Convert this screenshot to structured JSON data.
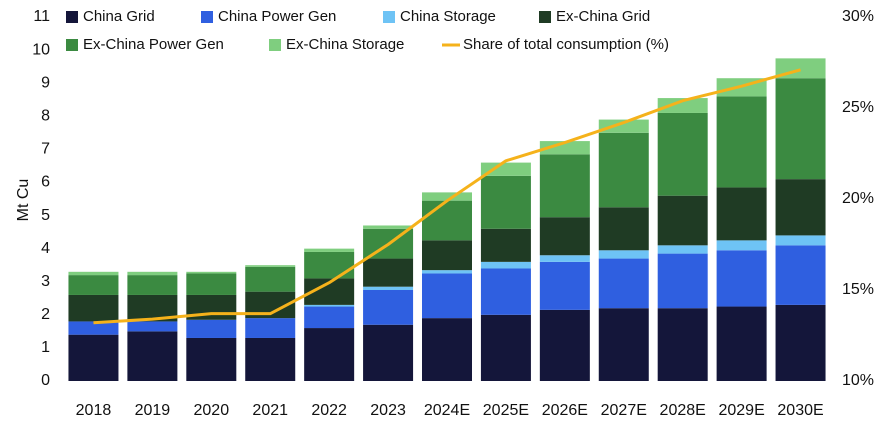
{
  "chart_data": {
    "type": "bar",
    "stacked": true,
    "y_label": "Mt Cu",
    "categories": [
      "2018",
      "2019",
      "2020",
      "2021",
      "2022",
      "2023",
      "2024E",
      "2025E",
      "2026E",
      "2027E",
      "2028E",
      "2029E",
      "2030E"
    ],
    "series": [
      {
        "name": "China Grid",
        "color": "#14163a",
        "values": [
          1.4,
          1.5,
          1.3,
          1.3,
          1.6,
          1.7,
          1.9,
          2.0,
          2.15,
          2.2,
          2.2,
          2.25,
          2.3
        ]
      },
      {
        "name": "China Power Gen",
        "color": "#2f5fe0",
        "values": [
          0.4,
          0.3,
          0.55,
          0.6,
          0.65,
          1.05,
          1.35,
          1.4,
          1.45,
          1.5,
          1.65,
          1.7,
          1.8
        ]
      },
      {
        "name": "China Storage",
        "color": "#6ec3f5",
        "values": [
          0,
          0,
          0,
          0,
          0.05,
          0.1,
          0.1,
          0.2,
          0.2,
          0.25,
          0.25,
          0.3,
          0.3
        ]
      },
      {
        "name": "Ex-China Grid",
        "color": "#1f3b24",
        "values": [
          0.8,
          0.8,
          0.75,
          0.8,
          0.8,
          0.85,
          0.9,
          1.0,
          1.15,
          1.3,
          1.5,
          1.6,
          1.7
        ]
      },
      {
        "name": "Ex-China Power Gen",
        "color": "#3b8a41",
        "values": [
          0.6,
          0.6,
          0.65,
          0.75,
          0.8,
          0.9,
          1.2,
          1.6,
          1.9,
          2.25,
          2.5,
          2.75,
          3.05
        ]
      },
      {
        "name": "Ex-China Storage",
        "color": "#7fce7f",
        "values": [
          0.1,
          0.1,
          0.05,
          0.05,
          0.1,
          0.1,
          0.25,
          0.4,
          0.4,
          0.4,
          0.45,
          0.55,
          0.6
        ]
      },
      {
        "name": "Share of total consumption (%)",
        "color": "#f5b21b",
        "type": "line",
        "axis": "y2",
        "values": [
          13.2,
          13.4,
          13.7,
          13.7,
          15.4,
          17.5,
          19.9,
          22.1,
          23.1,
          24.2,
          25.4,
          26.2,
          27.1
        ]
      }
    ],
    "ylim": [
      0,
      11
    ],
    "yticks": [
      0,
      1,
      2,
      3,
      4,
      5,
      6,
      7,
      8,
      9,
      10,
      11
    ],
    "y2lim": [
      10,
      30
    ],
    "y2ticks": [
      {
        "value": 10,
        "label": "10%"
      },
      {
        "value": 15,
        "label": "15%"
      },
      {
        "value": 20,
        "label": "20%"
      },
      {
        "value": 25,
        "label": "25%"
      },
      {
        "value": 30,
        "label": "30%"
      }
    ],
    "grid": false
  }
}
